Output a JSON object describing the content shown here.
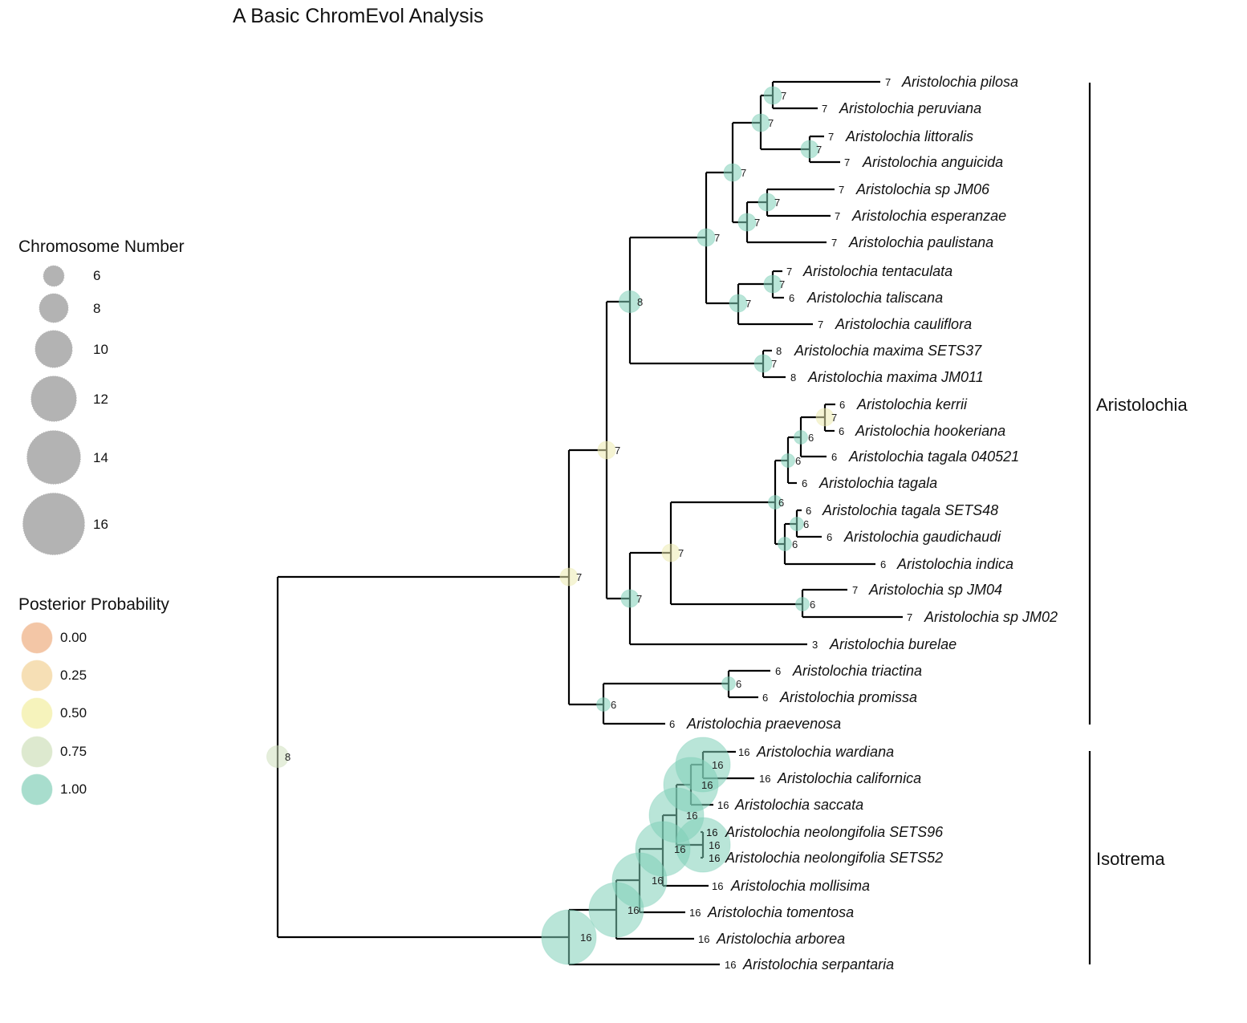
{
  "title": "A Basic ChromEvol Analysis",
  "legend_size": {
    "title": "Chromosome Number",
    "items": [
      {
        "label": "6",
        "value": 6
      },
      {
        "label": "8",
        "value": 8
      },
      {
        "label": "10",
        "value": 10
      },
      {
        "label": "12",
        "value": 12
      },
      {
        "label": "14",
        "value": 14
      },
      {
        "label": "16",
        "value": 16
      }
    ]
  },
  "legend_pp": {
    "title": "Posterior Probability",
    "items": [
      {
        "label": "0.00",
        "color": "#f3c6a6"
      },
      {
        "label": "0.25",
        "color": "#f6dfb5"
      },
      {
        "label": "0.50",
        "color": "#f6f3bc"
      },
      {
        "label": "0.75",
        "color": "#dde9cf"
      },
      {
        "label": "1.00",
        "color": "#a8ddcd"
      }
    ]
  },
  "colors": {
    "pp_100": "#7fcfb8",
    "pp_075": "#cfe0bd",
    "pp_050": "#ecebb0",
    "branch": "#000000",
    "legend_gray": "#b3b3b3"
  },
  "tips": [
    {
      "name": "Aristolochia pilosa",
      "n": "7"
    },
    {
      "name": "Aristolochia peruviana",
      "n": "7"
    },
    {
      "name": "Aristolochia littoralis",
      "n": "7"
    },
    {
      "name": "Aristolochia anguicida",
      "n": "7"
    },
    {
      "name": "Aristolochia sp JM06",
      "n": "7"
    },
    {
      "name": "Aristolochia esperanzae",
      "n": "7"
    },
    {
      "name": "Aristolochia paulistana",
      "n": "7"
    },
    {
      "name": "Aristolochia tentaculata",
      "n": "7"
    },
    {
      "name": "Aristolochia taliscana",
      "n": "6"
    },
    {
      "name": "Aristolochia cauliflora",
      "n": "7"
    },
    {
      "name": "Aristolochia maxima SETS37",
      "n": "8"
    },
    {
      "name": "Aristolochia maxima JM011",
      "n": "8"
    },
    {
      "name": "Aristolochia kerrii",
      "n": "6"
    },
    {
      "name": "Aristolochia hookeriana",
      "n": "6"
    },
    {
      "name": "Aristolochia tagala 040521",
      "n": "6"
    },
    {
      "name": "Aristolochia tagala",
      "n": "6"
    },
    {
      "name": "Aristolochia tagala SETS48",
      "n": "6"
    },
    {
      "name": "Aristolochia gaudichaudi",
      "n": "6"
    },
    {
      "name": "Aristolochia indica",
      "n": "6"
    },
    {
      "name": "Aristolochia sp JM04",
      "n": "7"
    },
    {
      "name": "Aristolochia sp JM02",
      "n": "7"
    },
    {
      "name": "Aristolochia burelae",
      "n": "3"
    },
    {
      "name": "Aristolochia triactina",
      "n": "6"
    },
    {
      "name": "Aristolochia promissa",
      "n": "6"
    },
    {
      "name": "Aristolochia praevenosa",
      "n": "6"
    },
    {
      "name": "Aristolochia wardiana",
      "n": "16"
    },
    {
      "name": "Aristolochia californica",
      "n": "16"
    },
    {
      "name": "Aristolochia saccata",
      "n": "16"
    },
    {
      "name": "Aristolochia neolongifolia SETS96",
      "n": "16"
    },
    {
      "name": "Aristolochia neolongifolia SETS52",
      "n": "16"
    },
    {
      "name": "Aristolochia mollisima",
      "n": "16"
    },
    {
      "name": "Aristolochia tomentosa",
      "n": "16"
    },
    {
      "name": "Aristolochia arborea",
      "n": "16"
    },
    {
      "name": "Aristolochia serpantaria",
      "n": "16"
    }
  ],
  "nodes": [
    {
      "n": "7",
      "pp": 1.0
    },
    {
      "n": "7",
      "pp": 1.0
    },
    {
      "n": "7",
      "pp": 1.0
    },
    {
      "n": "7",
      "pp": 1.0
    },
    {
      "n": "7",
      "pp": 1.0
    },
    {
      "n": "7",
      "pp": 1.0
    },
    {
      "n": "7",
      "pp": 1.0
    },
    {
      "n": "7",
      "pp": 1.0
    },
    {
      "n": "7",
      "pp": 1.0
    },
    {
      "n": "7",
      "pp": 1.0
    },
    {
      "n": "8",
      "pp": 1.0
    },
    {
      "n": "7",
      "pp": 0.5
    },
    {
      "n": "6",
      "pp": 1.0
    },
    {
      "n": "6",
      "pp": 1.0
    },
    {
      "n": "6",
      "pp": 1.0
    },
    {
      "n": "6",
      "pp": 1.0
    },
    {
      "n": "6",
      "pp": 1.0
    },
    {
      "n": "6",
      "pp": 1.0
    },
    {
      "n": "7",
      "pp": 0.5
    },
    {
      "n": "7",
      "pp": 1.0
    },
    {
      "n": "7",
      "pp": 0.5
    },
    {
      "n": "6",
      "pp": 1.0
    },
    {
      "n": "6",
      "pp": 1.0
    },
    {
      "n": "7",
      "pp": 0.5
    },
    {
      "n": "16",
      "pp": 1.0
    },
    {
      "n": "16",
      "pp": 1.0
    },
    {
      "n": "16",
      "pp": 1.0
    },
    {
      "n": "16",
      "pp": 1.0
    },
    {
      "n": "16",
      "pp": 1.0
    },
    {
      "n": "16",
      "pp": 1.0
    },
    {
      "n": "16",
      "pp": 1.0
    },
    {
      "n": "16",
      "pp": 1.0
    },
    {
      "n": "8",
      "pp": 0.75
    }
  ],
  "clades": [
    {
      "label": "Aristolochia"
    },
    {
      "label": "Isotrema"
    }
  ]
}
